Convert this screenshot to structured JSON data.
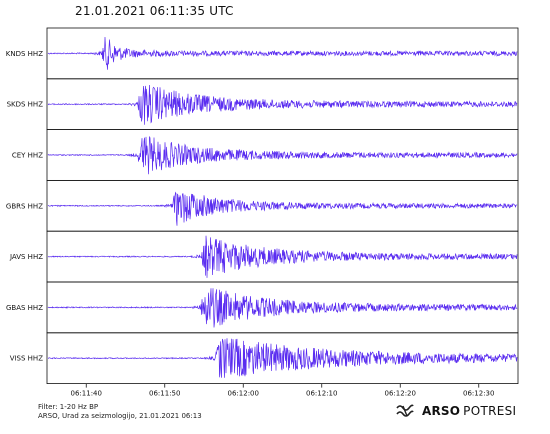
{
  "title": "21.01.2021  06:11:35 UTC",
  "chart_data": {
    "type": "line",
    "xlabel": "",
    "ylabel": "",
    "x_ticks": [
      "06:11:40",
      "06:11:50",
      "06:12:00",
      "06:12:10",
      "06:12:20",
      "06:12:30"
    ],
    "x_range_seconds": [
      -5,
      55
    ],
    "series": [
      {
        "name": "KNDS HHZ",
        "onset": 2.0,
        "amplitude": 1.0,
        "coda": 1.2
      },
      {
        "name": "SKDS HHZ",
        "onset": 6.6,
        "amplitude": 0.95,
        "coda": 6.0
      },
      {
        "name": "CEY HHZ",
        "onset": 6.6,
        "amplitude": 0.9,
        "coda": 5.5
      },
      {
        "name": "GBRS HHZ",
        "onset": 11.0,
        "amplitude": 0.85,
        "coda": 4.5
      },
      {
        "name": "JAVS HHZ",
        "onset": 14.7,
        "amplitude": 0.9,
        "coda": 6.5
      },
      {
        "name": "GBAS HHZ",
        "onset": 14.6,
        "amplitude": 0.95,
        "coda": 6.5
      },
      {
        "name": "VISS HHZ",
        "onset": 16.5,
        "amplitude": 0.9,
        "coda": 12.0
      }
    ],
    "line_color": "#5a2df0"
  },
  "footer": {
    "filter": "Filter: 1-20 Hz BP",
    "credit": "ARSO, Urad za seizmologijo, 21.01.2021  06:13"
  },
  "logo": {
    "icon": "arso-wave-icon",
    "brand": "ARSO",
    "brand2": "POTRESI"
  }
}
